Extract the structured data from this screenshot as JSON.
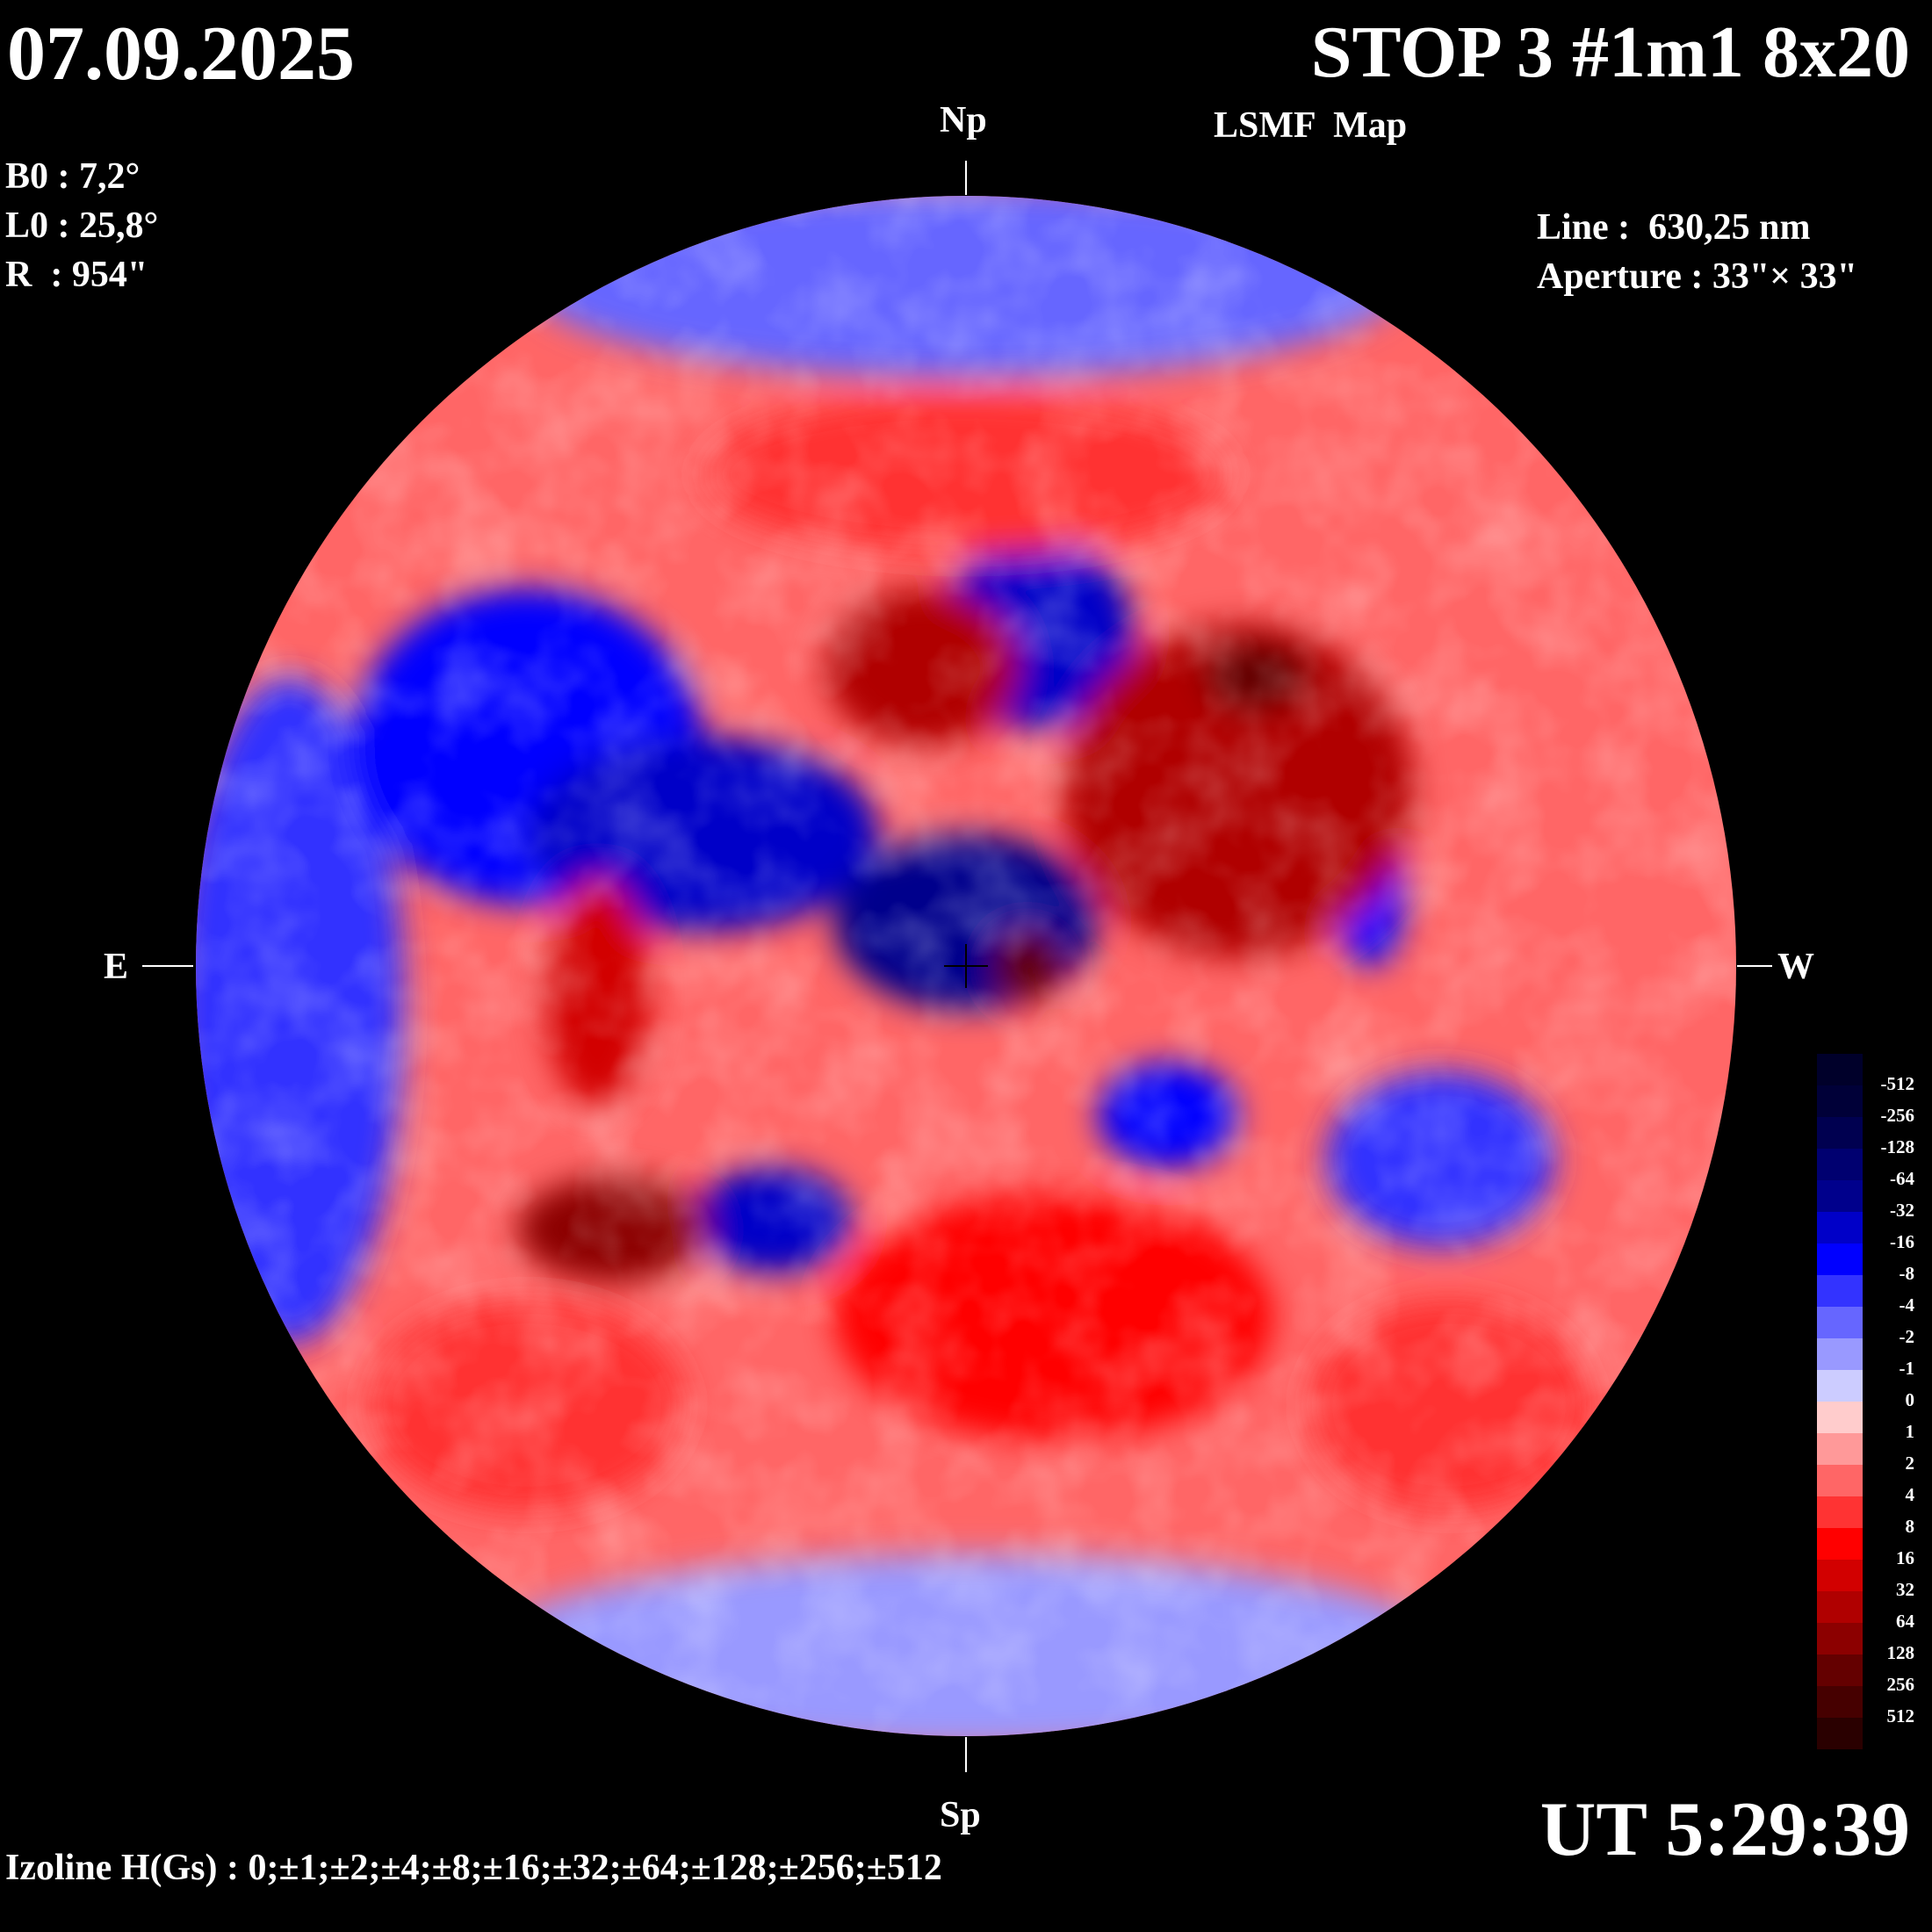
{
  "header": {
    "date": "07.09.2025",
    "title": "STOP 3 #1m1 8x20",
    "subtitle": "LSMF  Map"
  },
  "params": {
    "b0": "B0 : 7,2°",
    "l0": "L0 : 25,8°",
    "r": "R  : 954\""
  },
  "instrument": {
    "line": "Line :  630,25 nm",
    "aperture": "Aperture : 33\"× 33\""
  },
  "directions": {
    "north": "Np",
    "south": "Sp",
    "east": "E",
    "west": "W"
  },
  "time": "UT 5:29:39",
  "izoline": "Izoline H(Gs) : 0;±1;±2;±4;±8;±16;±32;±64;±128;±256;±512",
  "colorbar": {
    "labels": [
      "-512",
      "-256",
      "-128",
      "-64",
      "-32",
      "-16",
      "-8",
      "-4",
      "-2",
      "-1",
      "0",
      "1",
      "2",
      "4",
      "8",
      "16",
      "32",
      "64",
      "128",
      "256",
      "512"
    ],
    "colors": [
      "#00002a",
      "#000038",
      "#000050",
      "#000070",
      "#00008c",
      "#0000c8",
      "#0000ff",
      "#3333ff",
      "#6666ff",
      "#9999ff",
      "#ccccff",
      "#ffcccc",
      "#ff9999",
      "#ff6666",
      "#ff3333",
      "#ff0000",
      "#d20000",
      "#b00000",
      "#8c0000",
      "#640000",
      "#460000",
      "#2a0000"
    ]
  }
}
